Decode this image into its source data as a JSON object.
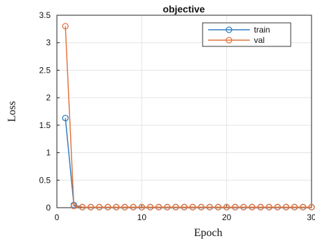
{
  "chart_data": {
    "type": "line",
    "title": "objective",
    "xlabel": "Epoch",
    "ylabel": "Loss",
    "xlim": [
      0,
      30
    ],
    "ylim": [
      0,
      3.5
    ],
    "xticks": [
      0,
      10,
      20,
      30
    ],
    "xtick_labels": [
      "0",
      "10",
      "20",
      "30"
    ],
    "yticks": [
      0,
      0.5,
      1,
      1.5,
      2,
      2.5,
      3,
      3.5
    ],
    "ytick_labels": [
      "0",
      "0.5",
      "1",
      "1.5",
      "2",
      "2.5",
      "3",
      "3.5"
    ],
    "grid": true,
    "legend_position": "top-right",
    "series": [
      {
        "name": "train",
        "color": "#2f7fc0",
        "marker": "circle",
        "x": [
          1,
          2,
          3,
          4,
          5,
          6,
          7,
          8,
          9,
          10,
          11,
          12,
          13,
          14,
          15,
          16,
          17,
          18,
          19,
          20,
          21,
          22,
          23,
          24,
          25,
          26,
          27,
          28,
          29,
          30
        ],
        "values": [
          1.63,
          0.05,
          0.01,
          0.01,
          0.01,
          0.01,
          0.01,
          0.01,
          0.01,
          0.01,
          0.01,
          0.01,
          0.01,
          0.01,
          0.01,
          0.01,
          0.01,
          0.01,
          0.01,
          0.01,
          0.01,
          0.01,
          0.01,
          0.01,
          0.01,
          0.01,
          0.01,
          0.01,
          0.01,
          0.01
        ]
      },
      {
        "name": "val",
        "color": "#e2733c",
        "marker": "circle",
        "x": [
          1,
          2,
          3,
          4,
          5,
          6,
          7,
          8,
          9,
          10,
          11,
          12,
          13,
          14,
          15,
          16,
          17,
          18,
          19,
          20,
          21,
          22,
          23,
          24,
          25,
          26,
          27,
          28,
          29,
          30
        ],
        "values": [
          3.3,
          0.03,
          0.01,
          0.01,
          0.01,
          0.01,
          0.01,
          0.01,
          0.01,
          0.01,
          0.01,
          0.01,
          0.01,
          0.01,
          0.01,
          0.01,
          0.01,
          0.01,
          0.01,
          0.01,
          0.01,
          0.01,
          0.01,
          0.01,
          0.01,
          0.01,
          0.01,
          0.01,
          0.01,
          0.01
        ]
      }
    ]
  }
}
